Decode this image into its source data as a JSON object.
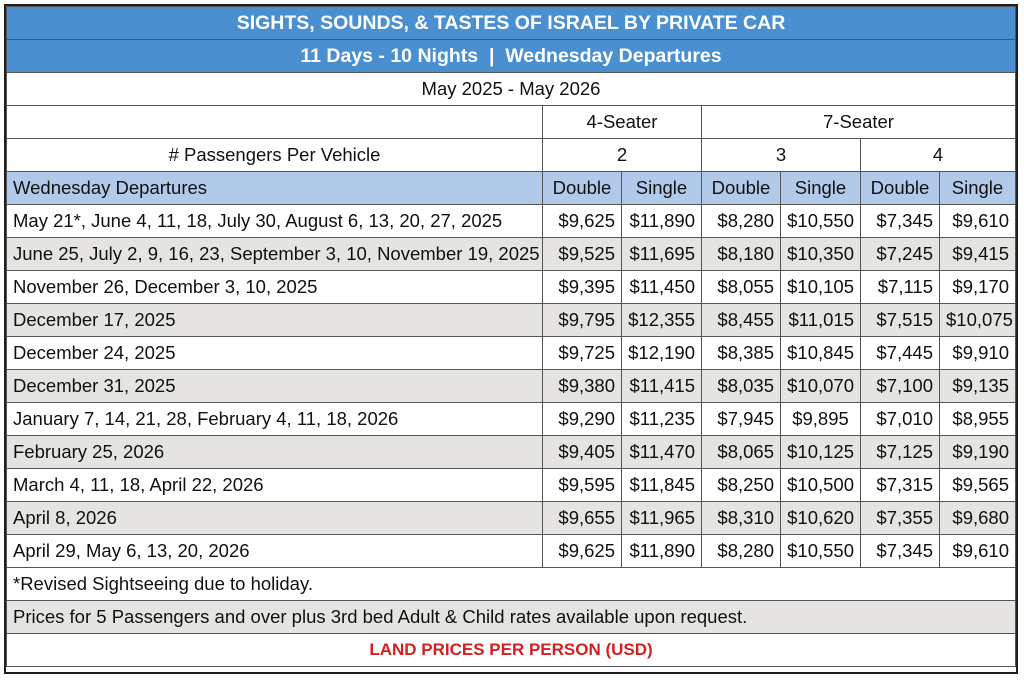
{
  "title": "SIGHTS, SOUNDS, & TASTES OF ISRAEL BY PRIVATE CAR",
  "subtitle": "11 Days - 10 Nights  |  Wednesday Departures",
  "period": "May 2025 - May 2026",
  "vehicles": {
    "four_seater": "4-Seater",
    "seven_seater": "7-Seater"
  },
  "passengers_label": "# Passengers Per Vehicle",
  "passenger_counts": [
    "2",
    "3",
    "4"
  ],
  "columns": {
    "departures": "Wednesday Departures",
    "double": "Double",
    "single": "Single"
  },
  "rows": [
    {
      "dates": "May 21*, June 4, 11, 18, July 30, August 6, 13, 20, 27, 2025",
      "prices": [
        "$9,625",
        "$11,890",
        "$8,280",
        "$10,550",
        "$7,345",
        "$9,610"
      ]
    },
    {
      "dates": "June 25, July 2, 9, 16, 23, September 3, 10, November 19, 2025",
      "prices": [
        "$9,525",
        "$11,695",
        "$8,180",
        "$10,350",
        "$7,245",
        "$9,415"
      ]
    },
    {
      "dates": "November 26, December 3, 10, 2025",
      "prices": [
        "$9,395",
        "$11,450",
        "$8,055",
        "$10,105",
        "$7,115",
        "$9,170"
      ]
    },
    {
      "dates": "December 17, 2025",
      "prices": [
        "$9,795",
        "$12,355",
        "$8,455",
        "$11,015",
        "$7,515",
        "$10,075"
      ]
    },
    {
      "dates": "December 24, 2025",
      "prices": [
        "$9,725",
        "$12,190",
        "$8,385",
        "$10,845",
        "$7,445",
        "$9,910"
      ]
    },
    {
      "dates": "December 31, 2025",
      "prices": [
        "$9,380",
        "$11,415",
        "$8,035",
        "$10,070",
        "$7,100",
        "$9,135"
      ]
    },
    {
      "dates": "January 7, 14, 21, 28, February 4, 11, 18, 2026",
      "prices": [
        "$9,290",
        "$11,235",
        "$7,945",
        "$9,895",
        "$7,010",
        "$8,955"
      ]
    },
    {
      "dates": "February 25, 2026",
      "prices": [
        "$9,405",
        "$11,470",
        "$8,065",
        "$10,125",
        "$7,125",
        "$9,190"
      ]
    },
    {
      "dates": "March 4, 11, 18, April 22, 2026",
      "prices": [
        "$9,595",
        "$11,845",
        "$8,250",
        "$10,500",
        "$7,315",
        "$9,565"
      ]
    },
    {
      "dates": "April 8, 2026",
      "prices": [
        "$9,655",
        "$11,965",
        "$8,310",
        "$10,620",
        "$7,355",
        "$9,680"
      ]
    },
    {
      "dates": "April 29, May 6, 13, 20, 2026",
      "prices": [
        "$9,625",
        "$11,890",
        "$8,280",
        "$10,550",
        "$7,345",
        "$9,610"
      ]
    }
  ],
  "footnote": "*Revised Sightseeing due to holiday.",
  "note": "Prices for 5 Passengers and over plus 3rd bed Adult & Child rates available upon request.",
  "footer": "LAND PRICES PER PERSON (USD)",
  "colors": {
    "header_blue": "#4a8fd0",
    "subheader_blue": "#b2caea",
    "alt_row": "#e6e4e1",
    "footer_red": "#d32020"
  }
}
